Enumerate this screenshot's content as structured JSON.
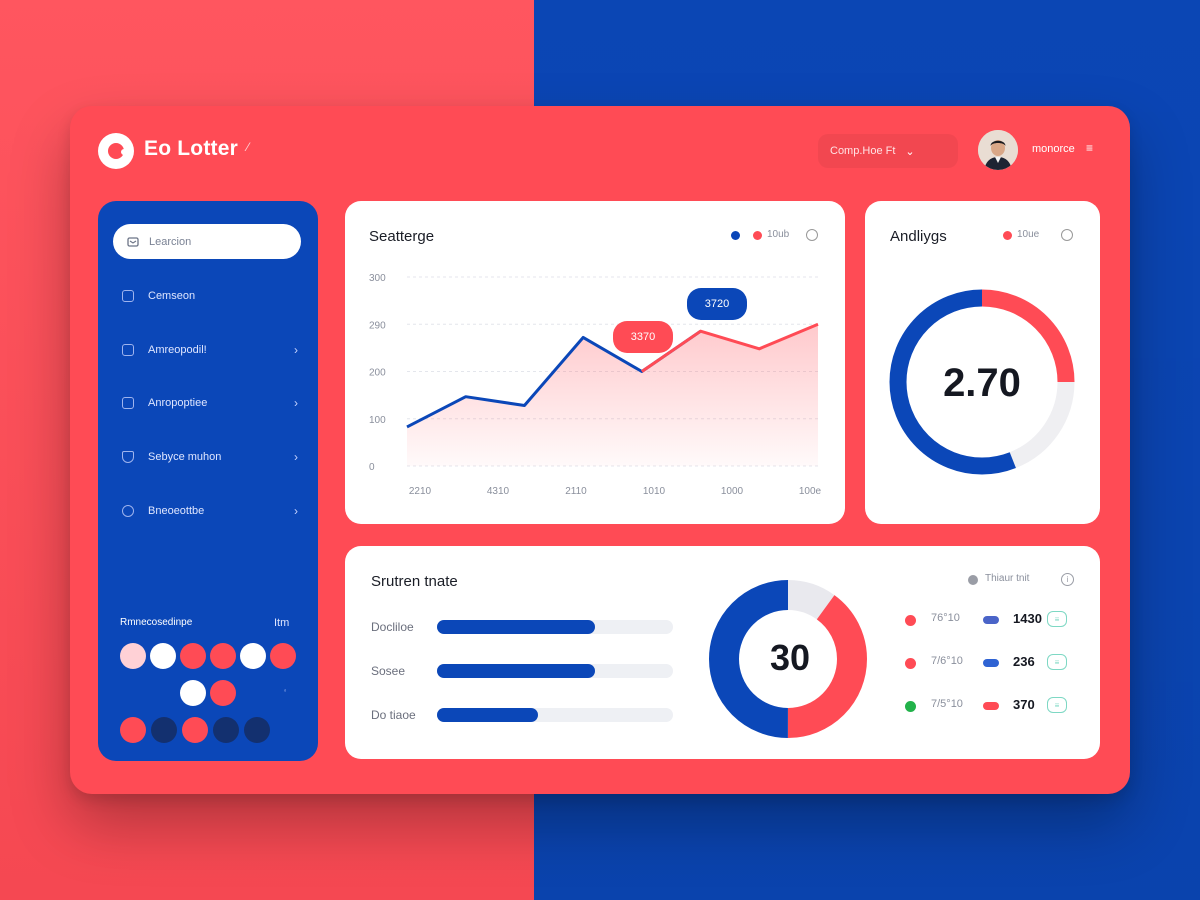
{
  "app": {
    "title": "Eo Lotter"
  },
  "header": {
    "select_text": "Comp.Hoe Ft",
    "user_name": "monorce",
    "colors": {
      "brand_red": "#ff4b55",
      "brand_blue": "#0b47b8"
    }
  },
  "sidebar": {
    "search_placeholder": "Learcion",
    "items": [
      {
        "label": "Cemseon",
        "has_arrow": false,
        "icon": "grid-icon"
      },
      {
        "label": "Amreopodil!",
        "has_arrow": true,
        "icon": "box-icon"
      },
      {
        "label": "Anropoptiee",
        "has_arrow": true,
        "icon": "document-icon"
      },
      {
        "label": "Sebyce muhon",
        "has_arrow": true,
        "icon": "shield-icon"
      },
      {
        "label": "Bneoeottbe",
        "has_arrow": true,
        "icon": "chat-icon"
      }
    ],
    "palette": {
      "title": "Rmnecosedinpe",
      "count": "Itm",
      "row1": [
        "#ffd1d6",
        "#ffffff",
        "#ff4b55",
        "#ff4b55",
        "#ffffff",
        "#ff4b55"
      ],
      "row2": [
        "#ffffff",
        "#ff4b55"
      ],
      "row3": [
        "#ff4b55",
        "#13306f",
        "#ff4b55",
        "#13306f",
        "#13306f"
      ]
    }
  },
  "line_card": {
    "title": "Seatterge",
    "legend_text": "10ub",
    "bubble_red": "3370",
    "bubble_blue": "3720",
    "chart_data": {
      "type": "area",
      "y_ticks": [
        "300",
        "290",
        "200",
        "100",
        "0"
      ],
      "x_ticks": [
        "2210",
        "4310",
        "2110",
        "1010",
        "1000",
        "100e"
      ],
      "ylim": [
        0,
        300
      ],
      "y_scale_values": [
        300,
        225,
        150,
        75,
        0
      ],
      "series": [
        {
          "x": [
            0,
            1,
            2,
            3,
            4,
            5,
            6,
            7
          ],
          "values": [
            62,
            110,
            96,
            204,
            150,
            214,
            186,
            225
          ]
        }
      ]
    }
  },
  "donut_card": {
    "title": "Andliygs",
    "legend_text": "10ue",
    "value": "2.70",
    "segments": {
      "blue_fraction": 0.56,
      "red_fraction": 0.25,
      "gray_fraction": 0.19
    }
  },
  "bottom_card": {
    "title": "Srutren tnate",
    "status_text": "Thiaur tnit",
    "bars": [
      {
        "label": "Docliloe",
        "fraction": 0.67
      },
      {
        "label": "Sosee",
        "fraction": 0.67
      },
      {
        "label": "Do tiaoe",
        "fraction": 0.43
      }
    ],
    "donut": {
      "value": "30",
      "segments": {
        "blue_fraction": 0.5,
        "red_fraction": 0.4,
        "gray_fraction": 0.1
      }
    },
    "stats": [
      {
        "percent": "76°10",
        "dot_color": "#ff4b55",
        "pill_color": "#4a64c8",
        "value": "1430",
        "badge": "≡"
      },
      {
        "percent": "7/6°10",
        "dot_color": "#ff4b55",
        "pill_color": "#2f63d3",
        "value": "236",
        "badge": "≡"
      },
      {
        "percent": "7/5°10",
        "dot_color": "#22b24a",
        "pill_color": "#ff4b55",
        "value": "370",
        "badge": "≡"
      }
    ]
  }
}
